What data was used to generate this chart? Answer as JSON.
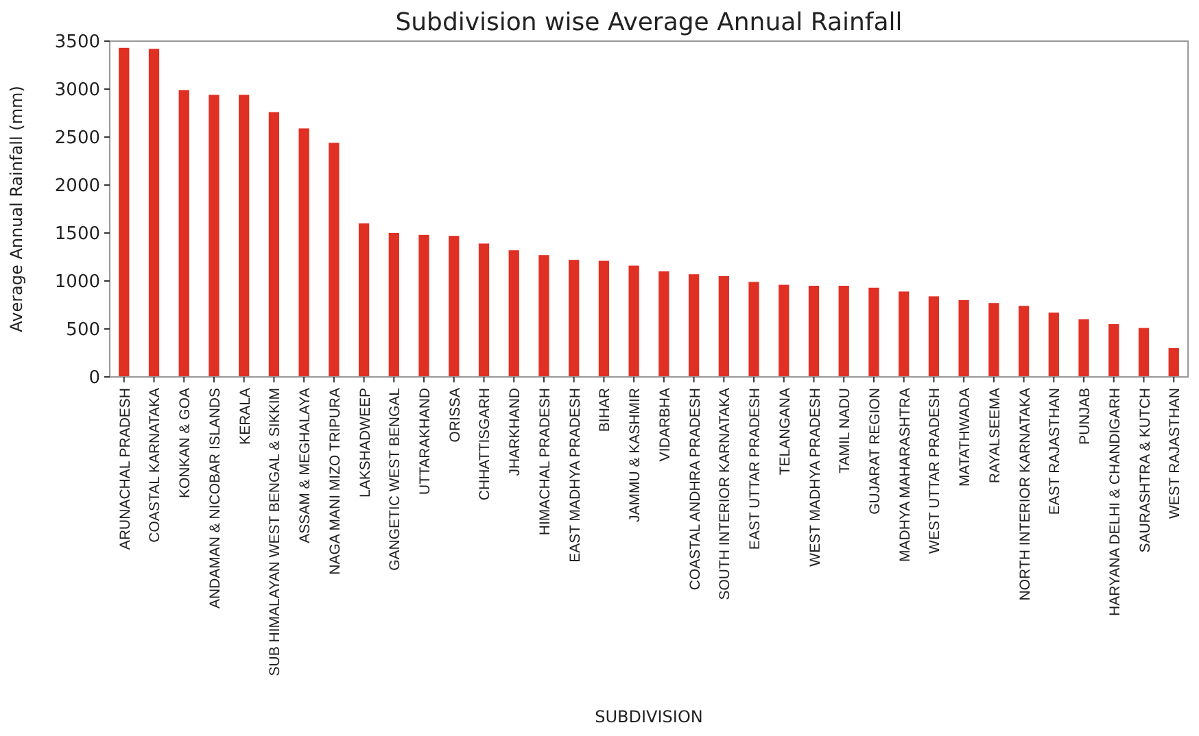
{
  "chart_data": {
    "type": "bar",
    "title": "Subdivision wise Average Annual Rainfall",
    "xlabel": "SUBDIVISION",
    "ylabel": "Average Annual Rainfall (mm)",
    "categories": [
      "ARUNACHAL PRADESH",
      "COASTAL KARNATAKA",
      "KONKAN & GOA",
      "ANDAMAN & NICOBAR ISLANDS",
      "KERALA",
      "SUB HIMALAYAN WEST BENGAL & SIKKIM",
      "ASSAM & MEGHALAYA",
      "NAGA MANI MIZO TRIPURA",
      "LAKSHADWEEP",
      "GANGETIC WEST BENGAL",
      "UTTARAKHAND",
      "ORISSA",
      "CHHATTISGARH",
      "JHARKHAND",
      "HIMACHAL PRADESH",
      "EAST MADHYA PRADESH",
      "BIHAR",
      "JAMMU & KASHMIR",
      "VIDARBHA",
      "COASTAL ANDHRA PRADESH",
      "SOUTH INTERIOR KARNATAKA",
      "EAST UTTAR PRADESH",
      "TELANGANA",
      "WEST MADHYA PRADESH",
      "TAMIL NADU",
      "GUJARAT REGION",
      "MADHYA MAHARASHTRA",
      "WEST UTTAR PRADESH",
      "MATATHWADA",
      "RAYALSEEMA",
      "NORTH INTERIOR KARNATAKA",
      "EAST RAJASTHAN",
      "PUNJAB",
      "HARYANA DELHI & CHANDIGARH",
      "SAURASHTRA & KUTCH",
      "WEST RAJASTHAN"
    ],
    "values": [
      3430,
      3420,
      2990,
      2940,
      2940,
      2760,
      2590,
      2440,
      1600,
      1500,
      1480,
      1470,
      1390,
      1320,
      1270,
      1220,
      1210,
      1160,
      1100,
      1070,
      1050,
      990,
      960,
      950,
      950,
      930,
      890,
      840,
      800,
      770,
      740,
      670,
      600,
      550,
      510,
      300
    ],
    "color": "#e03024",
    "ylim": [
      0,
      3500
    ],
    "yticks": [
      0,
      500,
      1000,
      1500,
      2000,
      2500,
      3000,
      3500
    ],
    "grid": false
  }
}
